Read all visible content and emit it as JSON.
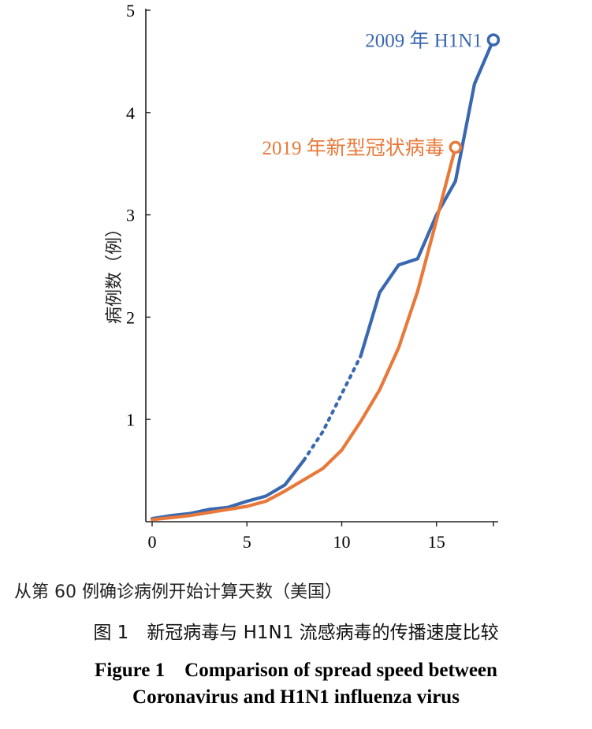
{
  "chart_data": {
    "type": "line",
    "xlabel": "从第 60 例确诊病例开始计算天数（美国）",
    "ylabel": "病例数（例）",
    "xlim": [
      0,
      18
    ],
    "ylim": [
      0,
      5
    ],
    "x_ticks": [
      0,
      5,
      10,
      15
    ],
    "y_ticks": [
      1,
      2,
      3,
      4,
      5
    ],
    "grid": false,
    "series": [
      {
        "name": "2009 年 H1N1",
        "color": "#3a68b0",
        "x": [
          0,
          1,
          2,
          3,
          4,
          5,
          6,
          7,
          8,
          9,
          10,
          11,
          12,
          13,
          14,
          15,
          16,
          17,
          18
        ],
        "y": [
          0.03,
          0.06,
          0.08,
          0.12,
          0.14,
          0.2,
          0.25,
          0.36,
          0.6,
          0.88,
          1.25,
          1.62,
          2.24,
          2.51,
          2.57,
          3.0,
          3.33,
          4.28,
          4.71
        ],
        "dotted_x_range": [
          9,
          11
        ]
      },
      {
        "name": "2019 年新型冠状病毒",
        "color": "#e8793a",
        "x": [
          0,
          1,
          2,
          3,
          4,
          5,
          6,
          7,
          8,
          9,
          10,
          11,
          12,
          13,
          14,
          15,
          16
        ],
        "y": [
          0.02,
          0.04,
          0.06,
          0.09,
          0.12,
          0.15,
          0.2,
          0.3,
          0.41,
          0.52,
          0.7,
          0.98,
          1.29,
          1.7,
          2.25,
          2.95,
          3.66
        ],
        "dotted_x_range": null
      }
    ]
  },
  "captions": {
    "x_axis_caption": "从第 60 例确诊病例开始计算天数（美国）",
    "title_cn": "图 1　新冠病毒与 H1N1 流感病毒的传播速度比较",
    "title_en_line1": "Figure 1　Comparison of spread speed between",
    "title_en_line2": "Coronavirus and H1N1 influenza virus"
  }
}
